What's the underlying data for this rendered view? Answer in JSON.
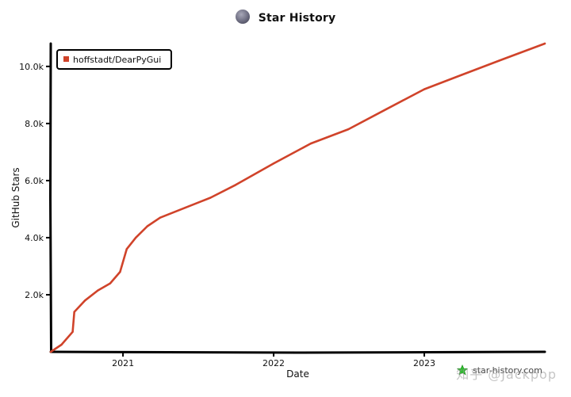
{
  "chart_data": {
    "type": "line",
    "title": "Star History",
    "xlabel": "Date",
    "ylabel": "GitHub Stars",
    "x_axis_type": "date",
    "x_range": [
      "2020-07-10",
      "2023-10-20"
    ],
    "ylim": [
      0,
      10800
    ],
    "x_ticks": [
      {
        "date": "2021-01-01",
        "label": "2021"
      },
      {
        "date": "2022-01-01",
        "label": "2022"
      },
      {
        "date": "2023-01-01",
        "label": "2023"
      }
    ],
    "y_ticks": [
      {
        "value": 2000,
        "label": "2.0k"
      },
      {
        "value": 4000,
        "label": "4.0k"
      },
      {
        "value": 6000,
        "label": "6.0k"
      },
      {
        "value": 8000,
        "label": "8.0k"
      },
      {
        "value": 10000,
        "label": "10.0k"
      }
    ],
    "grid": false,
    "legend_position": "top-left",
    "series": [
      {
        "name": "hoffstadt/DearPyGui",
        "color": "#d0432a",
        "points": [
          {
            "x": "2020-07-10",
            "y": 0
          },
          {
            "x": "2020-08-05",
            "y": 250
          },
          {
            "x": "2020-09-01",
            "y": 700
          },
          {
            "x": "2020-09-05",
            "y": 1400
          },
          {
            "x": "2020-10-01",
            "y": 1800
          },
          {
            "x": "2020-11-01",
            "y": 2150
          },
          {
            "x": "2020-12-01",
            "y": 2400
          },
          {
            "x": "2020-12-25",
            "y": 2800
          },
          {
            "x": "2021-01-10",
            "y": 3600
          },
          {
            "x": "2021-02-01",
            "y": 4000
          },
          {
            "x": "2021-03-01",
            "y": 4400
          },
          {
            "x": "2021-04-01",
            "y": 4700
          },
          {
            "x": "2021-06-01",
            "y": 5050
          },
          {
            "x": "2021-08-01",
            "y": 5400
          },
          {
            "x": "2021-10-01",
            "y": 5850
          },
          {
            "x": "2022-01-01",
            "y": 6600
          },
          {
            "x": "2022-04-01",
            "y": 7300
          },
          {
            "x": "2022-07-01",
            "y": 7800
          },
          {
            "x": "2022-10-01",
            "y": 8500
          },
          {
            "x": "2023-01-01",
            "y": 9200
          },
          {
            "x": "2023-04-01",
            "y": 9700
          },
          {
            "x": "2023-07-01",
            "y": 10200
          },
          {
            "x": "2023-10-20",
            "y": 10800
          }
        ]
      }
    ]
  },
  "brand": {
    "text": "star-history.com"
  },
  "watermark": {
    "text": "知乎 @Jackpop"
  }
}
